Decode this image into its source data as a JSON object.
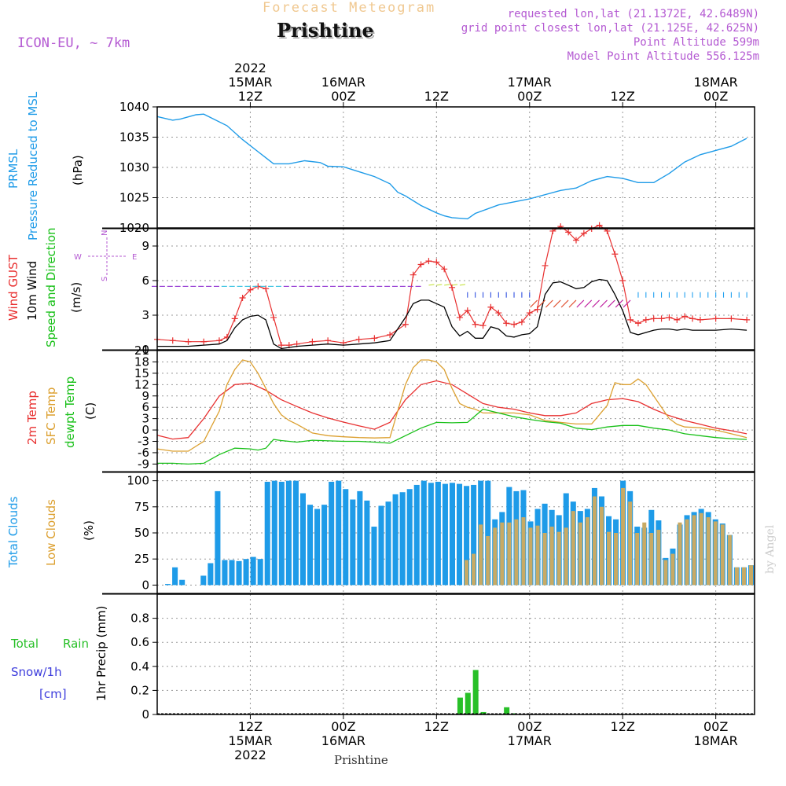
{
  "header": {
    "title": "Forecast Meteogram",
    "location": "Prishtine",
    "model": "ICON-EU, ~ 7km",
    "requested": "requested lon,lat (21.1372E, 42.6489N)",
    "gridpoint": "grid point closest lon,lat (21.125E, 42.625N)",
    "point_alt": "Point Altitude 599m",
    "model_alt": "Model Point Altitude 556.125m",
    "credit": "by Angel",
    "footer": "Prishtine"
  },
  "colors": {
    "pressure": "#1e9be8",
    "gust": "#e83030",
    "wind": "#000000",
    "temp2m": "#e83030",
    "sfc": "#dca030",
    "dewpt": "#18c018",
    "total_clouds": "#1e9be8",
    "low_clouds": "#c8aa64",
    "rain": "#28c028",
    "snow": "#3c3cdc",
    "purple": "#b45ad2"
  },
  "time_axis": {
    "top": [
      {
        "hour": 12,
        "l1": "15MAR",
        "l2": "12Z",
        "l0": "2022"
      },
      {
        "hour": 24,
        "l1": "16MAR",
        "l2": "00Z"
      },
      {
        "hour": 36,
        "l1": "",
        "l2": "12Z"
      },
      {
        "hour": 48,
        "l1": "17MAR",
        "l2": "00Z"
      },
      {
        "hour": 60,
        "l1": "",
        "l2": "12Z"
      },
      {
        "hour": 72,
        "l1": "18MAR",
        "l2": "00Z"
      }
    ],
    "bottom": [
      {
        "hour": 12,
        "l1": "12Z",
        "l2": "15MAR",
        "l3": "2022"
      },
      {
        "hour": 24,
        "l1": "00Z",
        "l2": "16MAR"
      },
      {
        "hour": 36,
        "l1": "12Z",
        "l2": ""
      },
      {
        "hour": 48,
        "l1": "00Z",
        "l2": "17MAR"
      },
      {
        "hour": 60,
        "l1": "12Z",
        "l2": ""
      },
      {
        "hour": 72,
        "l1": "00Z",
        "l2": "18MAR"
      }
    ]
  },
  "panels_text": {
    "pressure": {
      "name": "PRMSL",
      "desc": "Pressure Reduced to MSL",
      "unit": "(hPa)"
    },
    "wind": {
      "gust": "Wind GUST",
      "wind10": "10m Wind",
      "speed": "Speed and Direction",
      "unit": "(m/s)",
      "compass_w": "W",
      "compass_e": "E",
      "compass_n": "N",
      "compass_s": "S"
    },
    "temp": {
      "t2m": "2m Temp",
      "sfc": "SFC Temp",
      "dew": "dewpt Temp",
      "unit": "(C)"
    },
    "clouds": {
      "total": "Total Clouds",
      "low": "Low Clouds",
      "unit": "(%)"
    },
    "precip": {
      "rain1": "Total",
      "rain2": "Rain",
      "snow1": "Snow/1h",
      "snow2": "[cm]",
      "label": "1hr Precip (mm)"
    }
  },
  "chart_data": [
    {
      "type": "line",
      "title": "PRMSL Pressure Reduced to MSL",
      "ylabel": "hPa",
      "ylim": [
        1020,
        1040
      ],
      "yticks": [
        1020,
        1025,
        1030,
        1035,
        1040
      ],
      "xlim_hours": [
        0,
        77
      ],
      "series": [
        {
          "name": "PRMSL",
          "x": [
            0,
            2,
            3,
            5,
            6,
            9,
            11,
            13,
            14,
            15,
            17,
            19,
            21,
            22,
            24,
            26,
            28,
            30,
            31,
            32,
            34,
            36,
            37,
            38,
            40,
            41,
            44,
            48,
            52,
            54,
            56,
            58,
            60,
            62,
            64,
            66,
            68,
            70,
            72,
            74,
            76
          ],
          "values": [
            1038.4,
            1037.8,
            1038.0,
            1038.7,
            1038.8,
            1036.9,
            1034.6,
            1032.6,
            1031.6,
            1030.6,
            1030.6,
            1031.1,
            1030.8,
            1030.2,
            1030.1,
            1029.3,
            1028.5,
            1027.3,
            1025.9,
            1025.3,
            1023.7,
            1022.5,
            1022.0,
            1021.7,
            1021.5,
            1022.4,
            1023.8,
            1024.8,
            1026.2,
            1026.6,
            1027.8,
            1028.5,
            1028.2,
            1027.5,
            1027.5,
            1029.0,
            1030.9,
            1032.1,
            1032.8,
            1033.5,
            1034.8
          ]
        }
      ]
    },
    {
      "type": "line",
      "title": "Wind GUST / 10m Wind Speed and Direction",
      "ylabel": "m/s",
      "ylim": [
        0,
        10.5
      ],
      "yticks": [
        0,
        3,
        6,
        9
      ],
      "series": [
        {
          "name": "Wind GUST",
          "x": [
            0,
            2,
            4,
            6,
            8,
            9,
            10,
            11,
            12,
            13,
            14,
            15,
            16,
            17,
            18,
            20,
            22,
            24,
            26,
            28,
            30,
            32,
            33,
            34,
            35,
            36,
            37,
            38,
            39,
            40,
            41,
            42,
            43,
            44,
            45,
            46,
            47,
            48,
            49,
            50,
            51,
            52,
            53,
            54,
            55,
            56,
            57,
            58,
            59,
            60,
            61,
            62,
            63,
            64,
            65,
            66,
            67,
            68,
            69,
            70,
            72,
            74,
            76
          ],
          "values": [
            0.9,
            0.8,
            0.7,
            0.7,
            0.8,
            1.1,
            2.7,
            4.5,
            5.2,
            5.5,
            5.3,
            2.8,
            0.4,
            0.4,
            0.5,
            0.7,
            0.8,
            0.6,
            0.9,
            1.0,
            1.3,
            2.2,
            6.5,
            7.4,
            7.7,
            7.6,
            7.0,
            5.4,
            2.8,
            3.4,
            2.2,
            2.1,
            3.7,
            3.2,
            2.3,
            2.2,
            2.4,
            3.2,
            3.5,
            7.3,
            10.3,
            10.7,
            10.2,
            9.5,
            10.1,
            10.5,
            10.8,
            10.3,
            8.3,
            6.0,
            2.6,
            2.3,
            2.6,
            2.7,
            2.7,
            2.8,
            2.6,
            2.9,
            2.7,
            2.6,
            2.7,
            2.7,
            2.6
          ]
        },
        {
          "name": "10m Wind",
          "x": [
            0,
            2,
            4,
            6,
            8,
            9,
            10,
            11,
            12,
            13,
            14,
            15,
            16,
            17,
            18,
            20,
            22,
            24,
            26,
            28,
            30,
            32,
            33,
            34,
            35,
            36,
            37,
            38,
            39,
            40,
            41,
            42,
            43,
            44,
            45,
            46,
            47,
            48,
            49,
            50,
            51,
            52,
            53,
            54,
            55,
            56,
            57,
            58,
            59,
            60,
            61,
            62,
            63,
            64,
            65,
            66,
            67,
            68,
            69,
            70,
            72,
            74,
            76
          ],
          "values": [
            0.3,
            0.3,
            0.3,
            0.4,
            0.5,
            0.8,
            1.9,
            2.6,
            2.9,
            3.0,
            2.6,
            0.5,
            0.1,
            0.2,
            0.3,
            0.4,
            0.5,
            0.4,
            0.5,
            0.6,
            0.8,
            2.8,
            4.0,
            4.3,
            4.3,
            4.0,
            3.7,
            2.0,
            1.2,
            1.6,
            1.0,
            1.0,
            2.0,
            1.8,
            1.2,
            1.1,
            1.3,
            1.4,
            2.0,
            4.8,
            5.8,
            5.9,
            5.6,
            5.3,
            5.4,
            5.9,
            6.1,
            6.0,
            4.8,
            3.4,
            1.5,
            1.3,
            1.5,
            1.7,
            1.8,
            1.8,
            1.7,
            1.8,
            1.7,
            1.7,
            1.7,
            1.8,
            1.7
          ]
        }
      ]
    },
    {
      "type": "line",
      "title": "2m Temp / SFC Temp / dewpt Temp",
      "ylabel": "C",
      "ylim": [
        -11,
        21
      ],
      "yticks": [
        -9,
        -6,
        -3,
        0,
        3,
        6,
        9,
        12,
        15,
        18,
        21
      ],
      "series": [
        {
          "name": "2m Temp",
          "x": [
            0,
            2,
            4,
            6,
            8,
            10,
            12,
            14,
            16,
            18,
            20,
            22,
            24,
            26,
            28,
            30,
            32,
            34,
            36,
            38,
            40,
            42,
            44,
            46,
            48,
            50,
            52,
            54,
            56,
            58,
            60,
            62,
            64,
            66,
            68,
            70,
            72,
            74,
            76
          ],
          "values": [
            -1.4,
            -2.4,
            -2.0,
            3.0,
            9.0,
            12.0,
            12.4,
            10.5,
            8.0,
            6.2,
            4.5,
            3.2,
            2.1,
            1.1,
            0.2,
            2.0,
            8.0,
            12.0,
            13.0,
            12.0,
            9.5,
            7.0,
            6.0,
            5.5,
            4.5,
            3.8,
            3.8,
            4.5,
            7.0,
            8.0,
            8.3,
            7.5,
            5.5,
            3.8,
            2.5,
            1.5,
            0.5,
            -0.2,
            -1.0
          ]
        },
        {
          "name": "SFC Temp",
          "x": [
            0,
            2,
            4,
            6,
            8,
            9,
            10,
            11,
            12,
            13,
            14,
            15,
            16,
            17,
            18,
            20,
            22,
            24,
            26,
            28,
            30,
            31,
            32,
            33,
            34,
            35,
            36,
            37,
            38,
            39,
            40,
            41,
            42,
            44,
            46,
            48,
            50,
            52,
            54,
            56,
            58,
            59,
            60,
            61,
            62,
            63,
            64,
            65,
            66,
            67,
            68,
            70,
            72,
            74,
            76
          ],
          "values": [
            -5.0,
            -5.6,
            -5.6,
            -3.0,
            5.0,
            12.0,
            16.0,
            18.5,
            18.0,
            15.0,
            11.0,
            7.0,
            4.0,
            2.5,
            1.5,
            -0.8,
            -1.5,
            -1.8,
            -2.0,
            -2.1,
            -2.0,
            5.0,
            12.0,
            16.5,
            18.5,
            18.5,
            18.0,
            16.0,
            11.0,
            7.0,
            6.0,
            5.5,
            4.5,
            4.5,
            4.5,
            4.0,
            2.5,
            2.0,
            1.6,
            1.6,
            6.5,
            12.5,
            12.0,
            12.0,
            13.5,
            12.0,
            9.0,
            6.0,
            3.0,
            1.5,
            0.8,
            0.6,
            0.0,
            -1.0,
            -2.0
          ]
        },
        {
          "name": "dewpt Temp",
          "x": [
            0,
            2,
            4,
            6,
            8,
            10,
            12,
            13,
            14,
            15,
            16,
            18,
            20,
            24,
            26,
            28,
            30,
            32,
            34,
            36,
            38,
            40,
            42,
            44,
            46,
            48,
            50,
            52,
            54,
            56,
            58,
            60,
            62,
            64,
            66,
            68,
            70,
            72,
            74,
            76
          ],
          "values": [
            -8.8,
            -8.8,
            -9.0,
            -8.8,
            -6.5,
            -4.8,
            -5.0,
            -5.3,
            -4.8,
            -2.5,
            -2.8,
            -3.2,
            -2.7,
            -3.0,
            -3.0,
            -3.2,
            -3.5,
            -1.5,
            0.5,
            2.0,
            1.9,
            2.0,
            5.5,
            4.5,
            3.5,
            2.8,
            2.2,
            1.8,
            0.5,
            0.1,
            0.8,
            1.2,
            1.2,
            0.5,
            0.0,
            -1.0,
            -1.5,
            -2.0,
            -2.3,
            -2.5
          ]
        }
      ]
    },
    {
      "type": "bar",
      "title": "Total Clouds / Low Clouds",
      "ylabel": "%",
      "ylim": [
        -8,
        108
      ],
      "yticks": [
        0,
        25,
        50,
        75,
        100
      ],
      "series": [
        {
          "name": "Total Clouds",
          "values": [
            0,
            1,
            17,
            5,
            0,
            0,
            9,
            21,
            90,
            24,
            24,
            23,
            25,
            27,
            25,
            99,
            100,
            99,
            100,
            100,
            88,
            77,
            73,
            77,
            99,
            100,
            92,
            82,
            90,
            81,
            56,
            76,
            80,
            87,
            89,
            92,
            96,
            100,
            98,
            99,
            97,
            98,
            97,
            95,
            96,
            100,
            100,
            63,
            70,
            94,
            90,
            91,
            61,
            73,
            78,
            72,
            67,
            88,
            80,
            71,
            73,
            93,
            85,
            66,
            63,
            100,
            90,
            56,
            55,
            72,
            62,
            26,
            35,
            58,
            67,
            70,
            73,
            70,
            63,
            59,
            48,
            17,
            17,
            19
          ]
        },
        {
          "name": "Low Clouds",
          "values": [
            0,
            0,
            0,
            0,
            0,
            0,
            0,
            0,
            0,
            0,
            0,
            0,
            0,
            0,
            0,
            0,
            0,
            0,
            0,
            0,
            0,
            0,
            0,
            0,
            0,
            0,
            0,
            0,
            0,
            0,
            0,
            0,
            0,
            0,
            0,
            0,
            0,
            0,
            0,
            0,
            0,
            0,
            0,
            24,
            30,
            58,
            47,
            55,
            60,
            60,
            63,
            65,
            55,
            57,
            50,
            56,
            51,
            55,
            71,
            60,
            65,
            85,
            75,
            51,
            50,
            93,
            80,
            50,
            60,
            50,
            53,
            24,
            30,
            60,
            63,
            67,
            69,
            65,
            61,
            58,
            48,
            17,
            17,
            19
          ]
        }
      ]
    },
    {
      "type": "bar",
      "title": "1hr Precip",
      "ylabel": "mm",
      "ylim": [
        0,
        1.0
      ],
      "yticks": [
        0,
        0.2,
        0.4,
        0.6,
        0.8
      ],
      "series": [
        {
          "name": "Total Rain",
          "x": [
            39,
            40,
            41,
            42,
            45,
            46
          ],
          "values": [
            0.14,
            0.18,
            0.37,
            0.02,
            0.06,
            0.01
          ]
        }
      ]
    }
  ]
}
